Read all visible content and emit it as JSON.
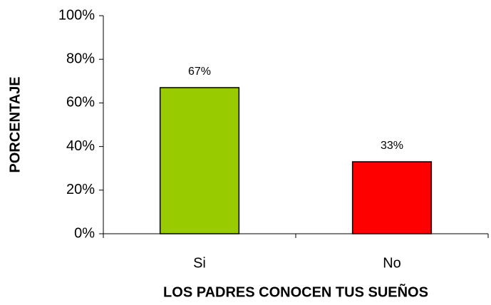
{
  "chart_data": {
    "type": "bar",
    "xlabel": "LOS PADRES CONOCEN TUS SUEÑOS",
    "ylabel": "PORCENTAJE",
    "categories": [
      "Si",
      "No"
    ],
    "values": [
      67,
      33
    ],
    "value_labels": [
      "67%",
      "33%"
    ],
    "colors": [
      "#99cc00",
      "#ff0000"
    ],
    "ylim": [
      0,
      100
    ],
    "yticks": [
      {
        "value": 0,
        "label": "0%"
      },
      {
        "value": 20,
        "label": "20%"
      },
      {
        "value": 40,
        "label": "40%"
      },
      {
        "value": 60,
        "label": "60%"
      },
      {
        "value": 80,
        "label": "80%"
      },
      {
        "value": 100,
        "label": "100%"
      }
    ]
  }
}
